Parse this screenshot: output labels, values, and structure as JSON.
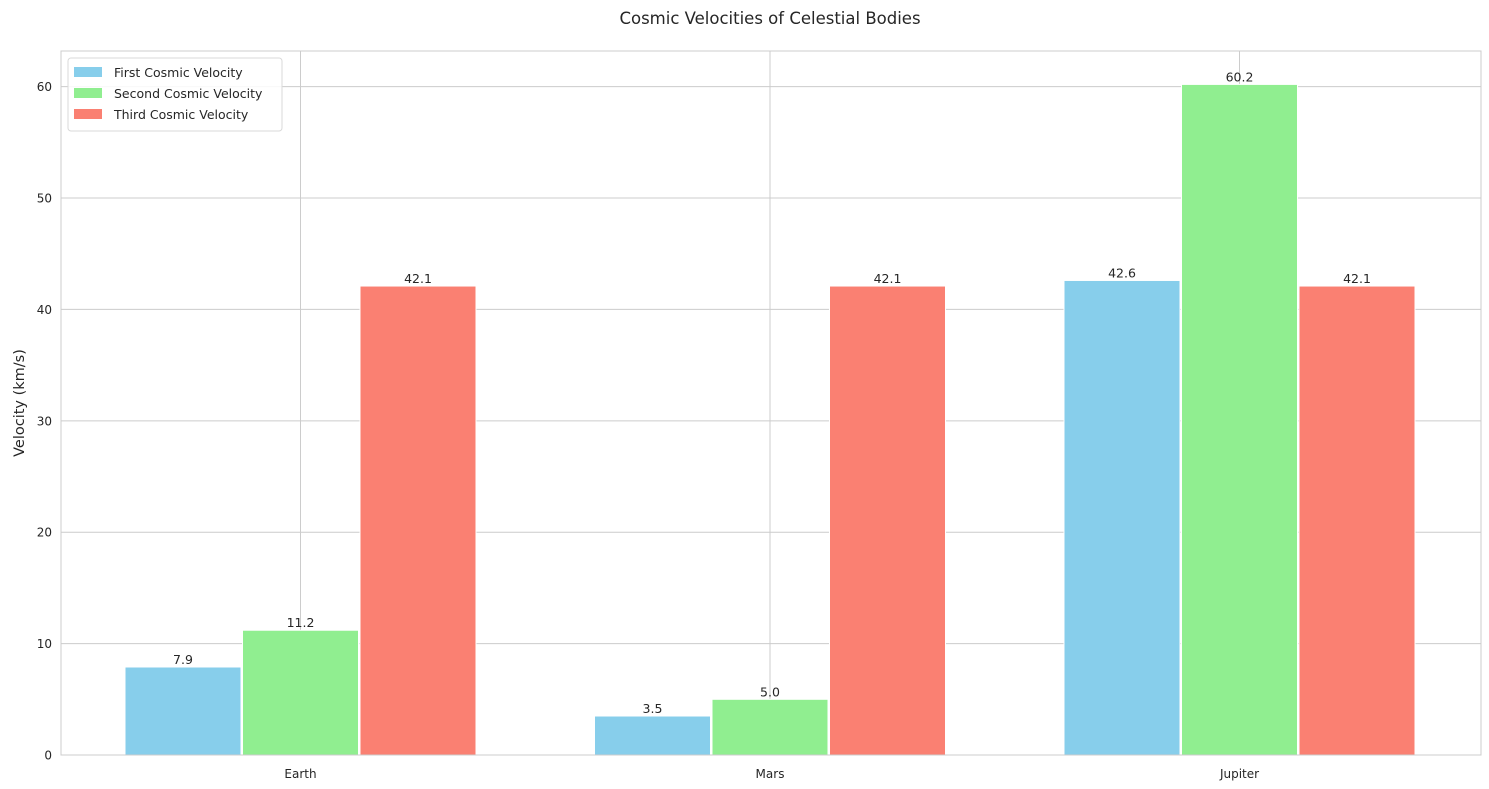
{
  "chart_data": {
    "type": "bar",
    "title": "Cosmic Velocities of Celestial Bodies",
    "xlabel": "",
    "ylabel": "Velocity (km/s)",
    "categories": [
      "Earth",
      "Mars",
      "Jupiter"
    ],
    "series": [
      {
        "name": "First Cosmic Velocity",
        "color": "#87CEEB",
        "values": [
          7.9,
          3.5,
          42.6
        ],
        "labels": [
          "7.9",
          "3.5",
          "42.6"
        ]
      },
      {
        "name": "Second Cosmic Velocity",
        "color": "#90EE90",
        "values": [
          11.2,
          5.0,
          60.2
        ],
        "labels": [
          "11.2",
          "5.0",
          "60.2"
        ]
      },
      {
        "name": "Third Cosmic Velocity",
        "color": "#FA8072",
        "values": [
          42.1,
          42.1,
          42.1
        ],
        "labels": [
          "42.1",
          "42.1",
          "42.1"
        ]
      }
    ],
    "ylim": [
      0,
      63.2
    ],
    "yticks": [
      0,
      10,
      20,
      30,
      40,
      50,
      60
    ],
    "grid": true,
    "legend_position": "top-left"
  }
}
